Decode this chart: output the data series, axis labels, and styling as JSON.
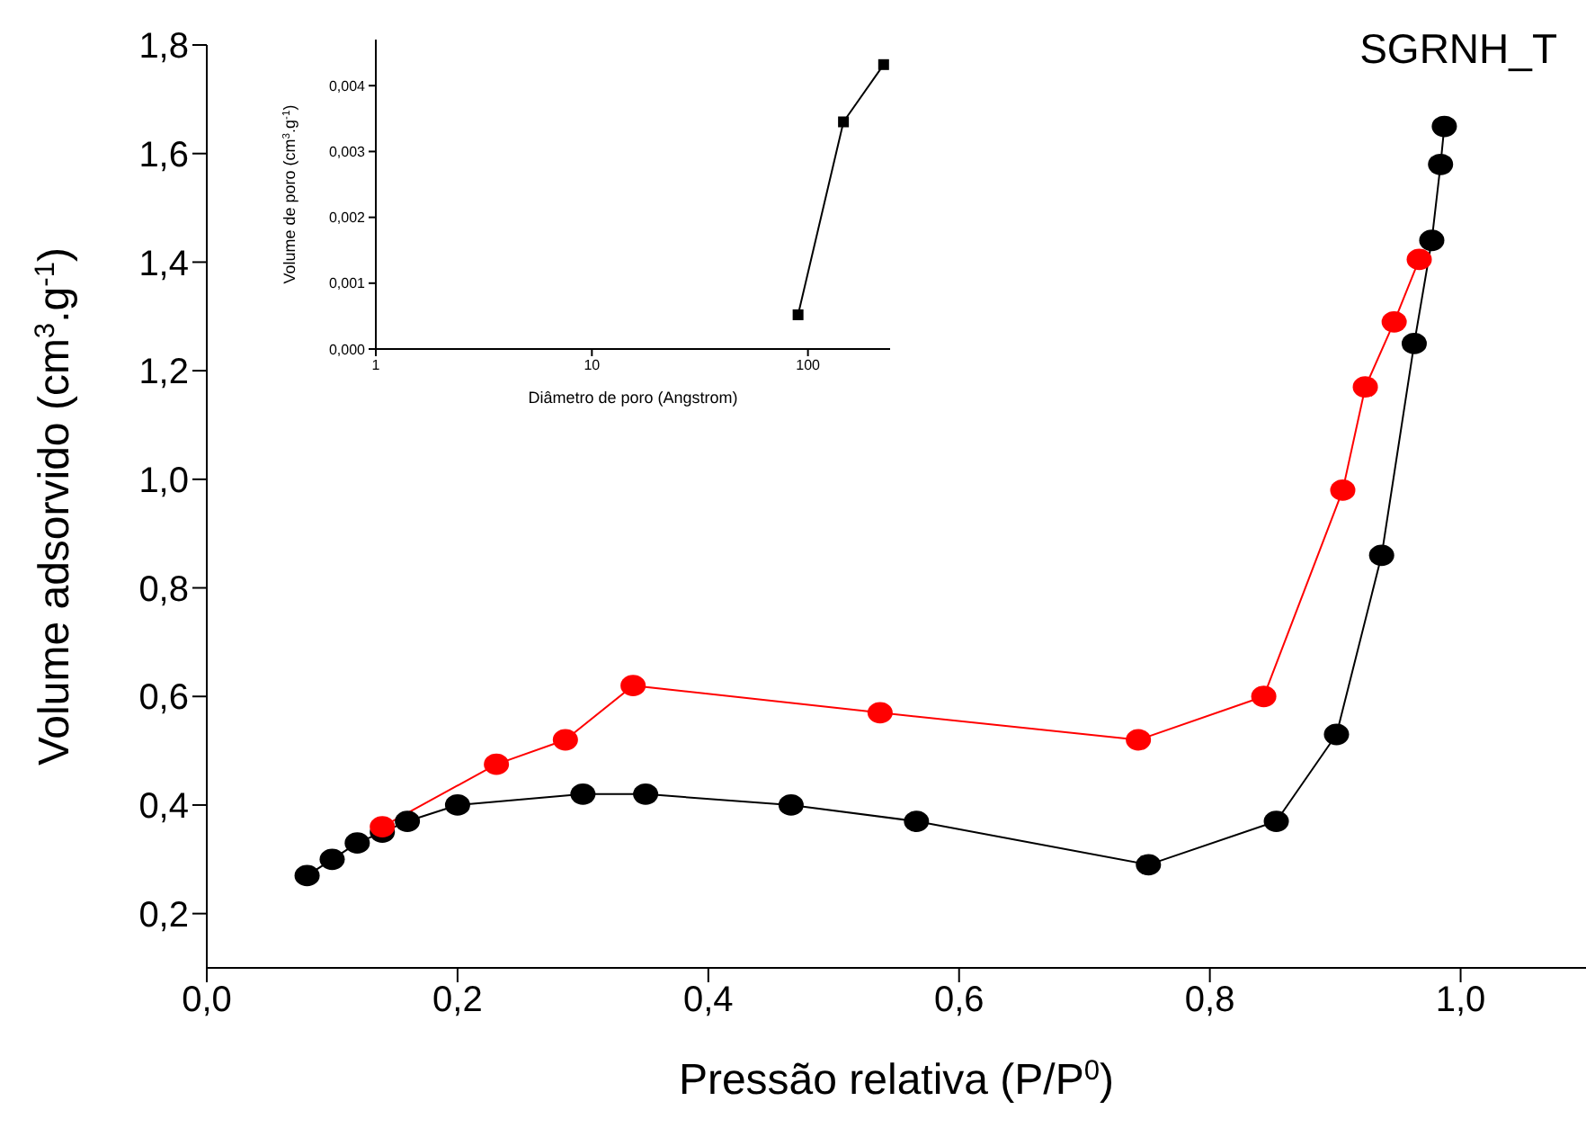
{
  "chart_data": [
    {
      "type": "line",
      "xlabel": "Pressão relativa (P/P$^{0}$)",
      "ylabel": "Volume adsorvido (cm$^{3}$.g$^{-1}$)",
      "annotations": [
        "SGRNH_T"
      ],
      "marker": "circle",
      "line_style": "solid",
      "xlim": [
        0,
        1.1
      ],
      "ylim": [
        0.1,
        1.8
      ],
      "xticks": [
        {
          "value": 0,
          "label": "0,0"
        },
        {
          "value": 0.2,
          "label": "0,2"
        },
        {
          "value": 0.4,
          "label": "0,4"
        },
        {
          "value": 0.6,
          "label": "0,6"
        },
        {
          "value": 0.8,
          "label": "0,8"
        },
        {
          "value": 1.0,
          "label": "1,0"
        }
      ],
      "yticks": [
        {
          "value": 0.2,
          "label": "0,2"
        },
        {
          "value": 0.4,
          "label": "0,4"
        },
        {
          "value": 0.6,
          "label": "0,6"
        },
        {
          "value": 0.8,
          "label": "0,8"
        },
        {
          "value": 1.0,
          "label": "1,0"
        },
        {
          "value": 1.2,
          "label": "1,2"
        },
        {
          "value": 1.4,
          "label": "1,4"
        },
        {
          "value": 1.6,
          "label": "1,6"
        },
        {
          "value": 1.8,
          "label": "1,8"
        }
      ],
      "series": [
        {
          "color": "#000000",
          "x": [
            0.08,
            0.1,
            0.12,
            0.14,
            0.16,
            0.2,
            0.3,
            0.35,
            0.466,
            0.566,
            0.751,
            0.853,
            0.901,
            0.937,
            0.963,
            0.977,
            0.984,
            0.987
          ],
          "values": [
            0.27,
            0.3,
            0.33,
            0.35,
            0.37,
            0.4,
            0.42,
            0.42,
            0.4,
            0.37,
            0.29,
            0.37,
            0.53,
            0.86,
            1.25,
            1.44,
            1.58,
            1.65
          ]
        },
        {
          "color": "#ff0000",
          "x": [
            0.14,
            0.231,
            0.286,
            0.34,
            0.537,
            0.743,
            0.843,
            0.906,
            0.924,
            0.947,
            0.967
          ],
          "values": [
            0.36,
            0.475,
            0.52,
            0.62,
            0.57,
            0.52,
            0.6,
            0.98,
            1.17,
            1.29,
            1.405
          ]
        }
      ]
    },
    {
      "type": "line",
      "xlabel": "Diâmetro de poro (Angstrom)",
      "ylabel": "Volume de poro (cm$^{3}$.g$^{-1}$)",
      "marker": "square",
      "line_style": "solid",
      "log": "x",
      "xlim": [
        1,
        240
      ],
      "ylim": [
        0,
        0.0047
      ],
      "xticks": [
        1,
        10,
        100
      ],
      "yticks": [
        {
          "value": 0,
          "label": "0,000"
        },
        {
          "value": 0.001,
          "label": "0,001"
        },
        {
          "value": 0.002,
          "label": "0,002"
        },
        {
          "value": 0.003,
          "label": "0,003"
        },
        {
          "value": 0.004,
          "label": "0,004"
        }
      ],
      "series": [
        {
          "color": "#000000",
          "x": [
            90,
            146,
            224
          ],
          "values": [
            0.00052,
            0.00345,
            0.00432
          ]
        }
      ]
    }
  ]
}
